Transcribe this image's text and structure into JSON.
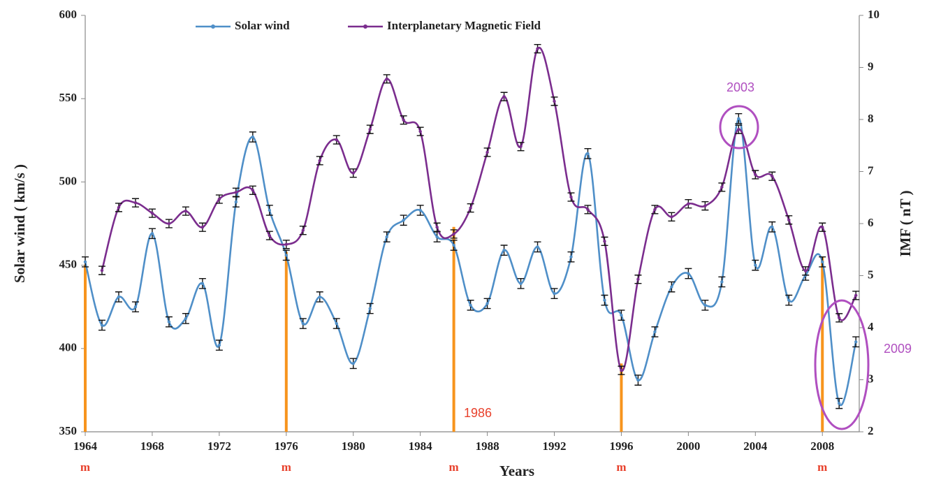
{
  "chart_data": {
    "type": "line",
    "x_label": "Years",
    "y_label": "Solar wind ( km/s )",
    "y2_label": "IMF ( nT )",
    "x": [
      1964,
      1965,
      1966,
      1967,
      1968,
      1969,
      1970,
      1971,
      1972,
      1973,
      1974,
      1975,
      1976,
      1977,
      1978,
      1979,
      1980,
      1981,
      1982,
      1983,
      1984,
      1985,
      1986,
      1987,
      1988,
      1989,
      1990,
      1991,
      1992,
      1993,
      1994,
      1995,
      1996,
      1997,
      1998,
      1999,
      2000,
      2001,
      2002,
      2003,
      2004,
      2005,
      2006,
      2007,
      2008,
      2009,
      2010
    ],
    "series": [
      {
        "name": "Solar wind",
        "color": "#4f8fc8",
        "error": 3,
        "values": [
          452,
          414,
          431,
          425,
          469,
          416,
          418,
          439,
          402,
          488,
          527,
          483,
          456,
          415,
          431,
          415,
          391,
          424,
          467,
          477,
          483,
          467,
          462,
          426,
          427,
          459,
          439,
          461,
          433,
          455,
          517,
          429,
          420,
          381,
          410,
          437,
          445,
          426,
          440,
          538,
          450,
          473,
          429,
          444,
          452,
          367,
          404
        ]
      },
      {
        "name": "Interplanetary Magnetic Field",
        "color": "#7b2d8e",
        "axis": "y2",
        "error": 0.08,
        "values": [
          null,
          5.1,
          6.31,
          6.4,
          6.2,
          6.0,
          6.24,
          5.93,
          6.47,
          6.6,
          6.64,
          5.77,
          5.6,
          5.87,
          7.21,
          7.61,
          6.97,
          7.81,
          8.78,
          7.99,
          7.77,
          5.93,
          5.8,
          6.3,
          7.37,
          8.44,
          7.48,
          9.36,
          8.35,
          6.51,
          6.27,
          5.66,
          3.18,
          4.93,
          6.27,
          6.13,
          6.38,
          6.34,
          6.7,
          7.81,
          6.94,
          6.91,
          6.07,
          5.09,
          5.93,
          4.19,
          4.62
        ]
      }
    ],
    "xlim": [
      1964,
      2010.2
    ],
    "xticks": [
      1964,
      1968,
      1972,
      1976,
      1980,
      1984,
      1988,
      1992,
      1996,
      2000,
      2004,
      2008
    ],
    "ylim": [
      350,
      600
    ],
    "yticks": [
      350,
      400,
      450,
      500,
      550,
      600
    ],
    "y2lim": [
      2,
      10
    ],
    "y2ticks": [
      2,
      3,
      4,
      5,
      6,
      7,
      8,
      9,
      10
    ],
    "legend": "top",
    "minima": {
      "color": "#f7941d",
      "label_color": "#e8412c",
      "items": [
        {
          "x": 1964,
          "top": 450,
          "label": "m"
        },
        {
          "x": 1976,
          "top": 458,
          "label": "m"
        },
        {
          "x": 1986,
          "top": 473,
          "label": "m"
        },
        {
          "x": 1996,
          "top": 391,
          "label": "m"
        },
        {
          "x": 2008,
          "top": 455,
          "label": "m"
        }
      ]
    },
    "annotations": [
      {
        "text": "2003",
        "color": "#b04fc0"
      },
      {
        "text": "2009",
        "color": "#b04fc0"
      },
      {
        "text": "1986",
        "color": "#e8412c"
      }
    ]
  }
}
